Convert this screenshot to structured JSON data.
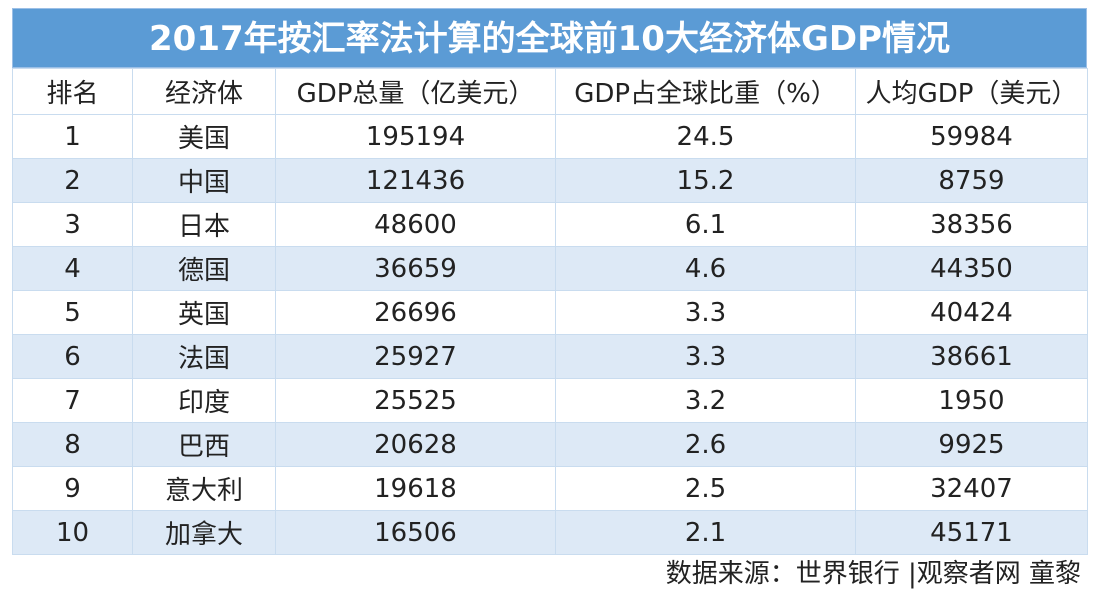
{
  "title": "2017年按汇率法计算的全球前10大经济体GDP情况",
  "headers": [
    "排名",
    "经济体",
    "GDP总量（亿美元）",
    "GDP占全球比重（%）",
    "人均GDP（美元）"
  ],
  "rows": [
    [
      "1",
      "美国",
      "195194",
      "24.5",
      "59984"
    ],
    [
      "2",
      "中国",
      "121436",
      "15.2",
      "8759"
    ],
    [
      "3",
      "日本",
      "48600",
      "6.1",
      "38356"
    ],
    [
      "4",
      "德国",
      "36659",
      "4.6",
      "44350"
    ],
    [
      "5",
      "英国",
      "26696",
      "3.3",
      "40424"
    ],
    [
      "6",
      "法国",
      "25927",
      "3.3",
      "38661"
    ],
    [
      "7",
      "印度",
      "25525",
      "3.2",
      "1950"
    ],
    [
      "8",
      "巴西",
      "20628",
      "2.6",
      "9925"
    ],
    [
      "9",
      "意大利",
      "19618",
      "2.5",
      "32407"
    ],
    [
      "10",
      "加拿大",
      "16506",
      "2.1",
      "45171"
    ]
  ],
  "source": "数据来源：世界银行 |观察者网 童黎",
  "colors": {
    "title_bg": "#5b9bd5",
    "stripe": "#dde9f6",
    "border": "#c9dcef"
  }
}
